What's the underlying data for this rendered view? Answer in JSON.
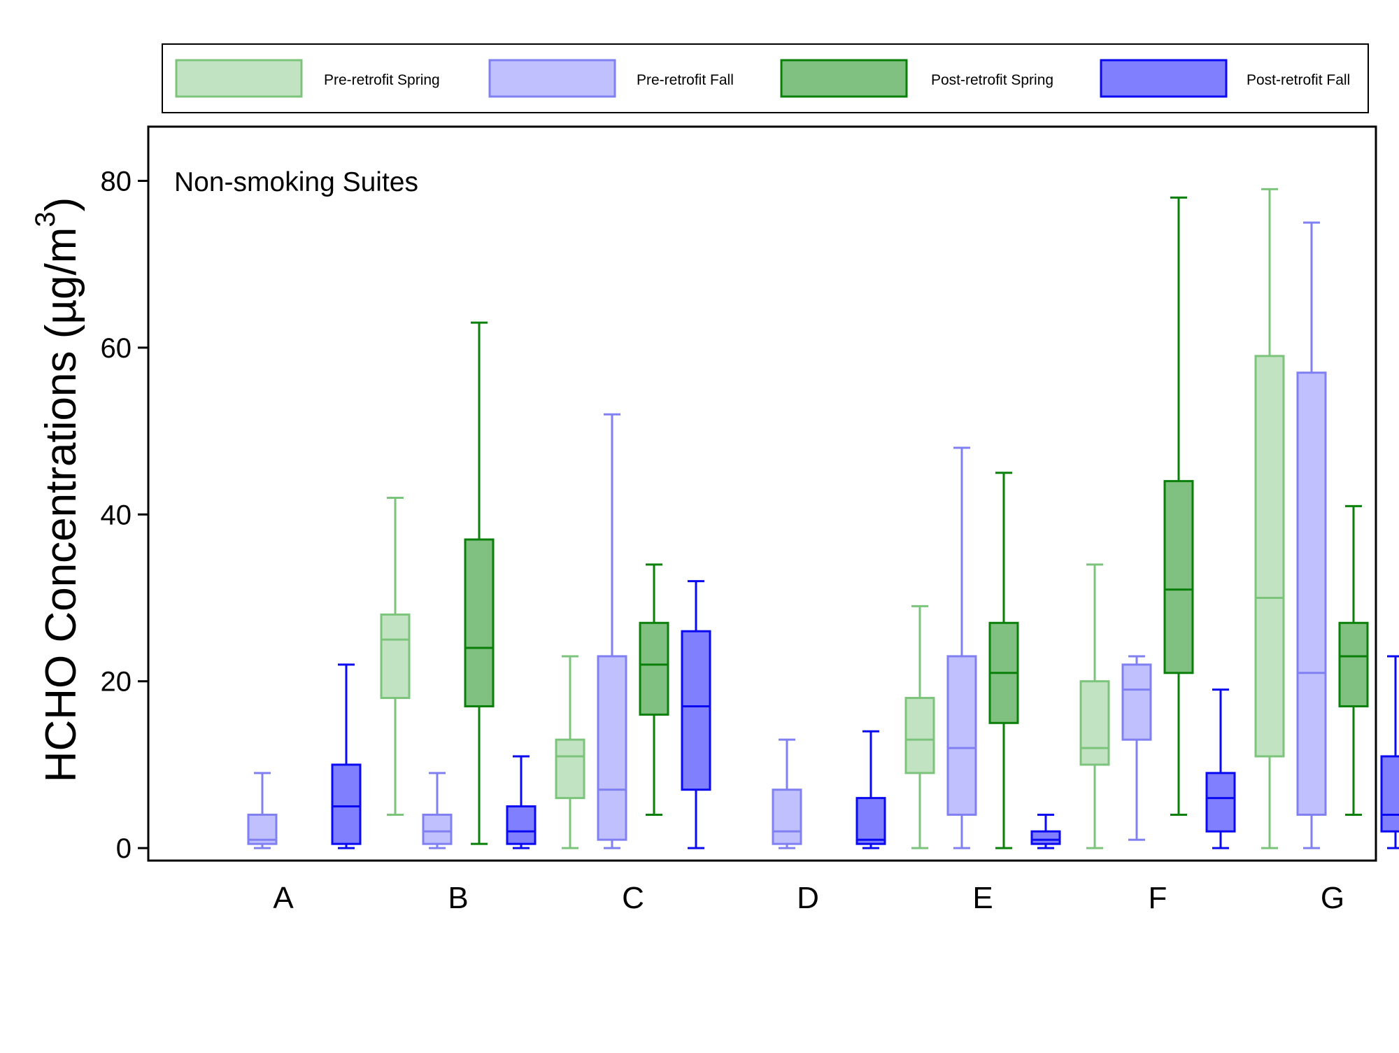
{
  "chart_data": {
    "type": "box",
    "annotation": "Non-smoking Suites",
    "ylabel": "HCHO Concentrations (µg/m",
    "ylabel_superscript": "3",
    "ylabel_close": ")",
    "ylim": [
      -1.5,
      86.5
    ],
    "yticks": [
      0,
      20,
      40,
      60,
      80
    ],
    "grid": false,
    "legend_position": "top",
    "categories": [
      "A",
      "B",
      "C",
      "D",
      "E",
      "F",
      "G"
    ],
    "series": [
      {
        "name": "Pre-retrofit Spring",
        "fill": "#c2e3c2",
        "stroke": "#7cc47c",
        "boxes": [
          null,
          {
            "min": 4,
            "q1": 18,
            "median": 25,
            "q3": 28,
            "max": 42
          },
          {
            "min": 0,
            "q1": 6,
            "median": 11,
            "q3": 13,
            "max": 23
          },
          null,
          {
            "min": 0,
            "q1": 9,
            "median": 13,
            "q3": 18,
            "max": 29
          },
          {
            "min": 0,
            "q1": 10,
            "median": 12,
            "q3": 20,
            "max": 34
          },
          {
            "min": 0,
            "q1": 11,
            "median": 30,
            "q3": 59,
            "max": 79
          }
        ]
      },
      {
        "name": "Pre-retrofit Fall",
        "fill": "#c0c0ff",
        "stroke": "#8080f2",
        "boxes": [
          {
            "min": 0,
            "q1": 0.5,
            "median": 1,
            "q3": 4,
            "max": 9
          },
          {
            "min": 0,
            "q1": 0.5,
            "median": 2,
            "q3": 4,
            "max": 9
          },
          {
            "min": 0,
            "q1": 1,
            "median": 7,
            "q3": 23,
            "max": 52
          },
          {
            "min": 0,
            "q1": 0.5,
            "median": 2,
            "q3": 7,
            "max": 13
          },
          {
            "min": 0,
            "q1": 4,
            "median": 12,
            "q3": 23,
            "max": 48
          },
          {
            "min": 1,
            "q1": 13,
            "median": 19,
            "q3": 22,
            "max": 23
          },
          {
            "min": 0,
            "q1": 4,
            "median": 21,
            "q3": 57,
            "max": 75
          }
        ]
      },
      {
        "name": "Post-retrofit Spring",
        "fill": "#80c080",
        "stroke": "#0a800a",
        "boxes": [
          null,
          {
            "min": 0.5,
            "q1": 17,
            "median": 24,
            "q3": 37,
            "max": 63
          },
          {
            "min": 4,
            "q1": 16,
            "median": 22,
            "q3": 27,
            "max": 34
          },
          null,
          {
            "min": 0,
            "q1": 15,
            "median": 21,
            "q3": 27,
            "max": 45
          },
          {
            "min": 4,
            "q1": 21,
            "median": 31,
            "q3": 44,
            "max": 78
          },
          {
            "min": 4,
            "q1": 17,
            "median": 23,
            "q3": 27,
            "max": 41
          }
        ]
      },
      {
        "name": "Post-retrofit Fall",
        "fill": "#8080ff",
        "stroke": "#0a0af2",
        "boxes": [
          {
            "min": 0,
            "q1": 0.5,
            "median": 5,
            "q3": 10,
            "max": 22
          },
          {
            "min": 0,
            "q1": 0.5,
            "median": 2,
            "q3": 5,
            "max": 11
          },
          {
            "min": 0,
            "q1": 7,
            "median": 17,
            "q3": 26,
            "max": 32
          },
          {
            "min": 0,
            "q1": 0.5,
            "median": 1,
            "q3": 6,
            "max": 14
          },
          {
            "min": 0,
            "q1": 0.5,
            "median": 1,
            "q3": 2,
            "max": 4
          },
          {
            "min": 0,
            "q1": 2,
            "median": 6,
            "q3": 9,
            "max": 19
          },
          {
            "min": 0,
            "q1": 2,
            "median": 4,
            "q3": 11,
            "max": 23
          }
        ]
      }
    ]
  }
}
